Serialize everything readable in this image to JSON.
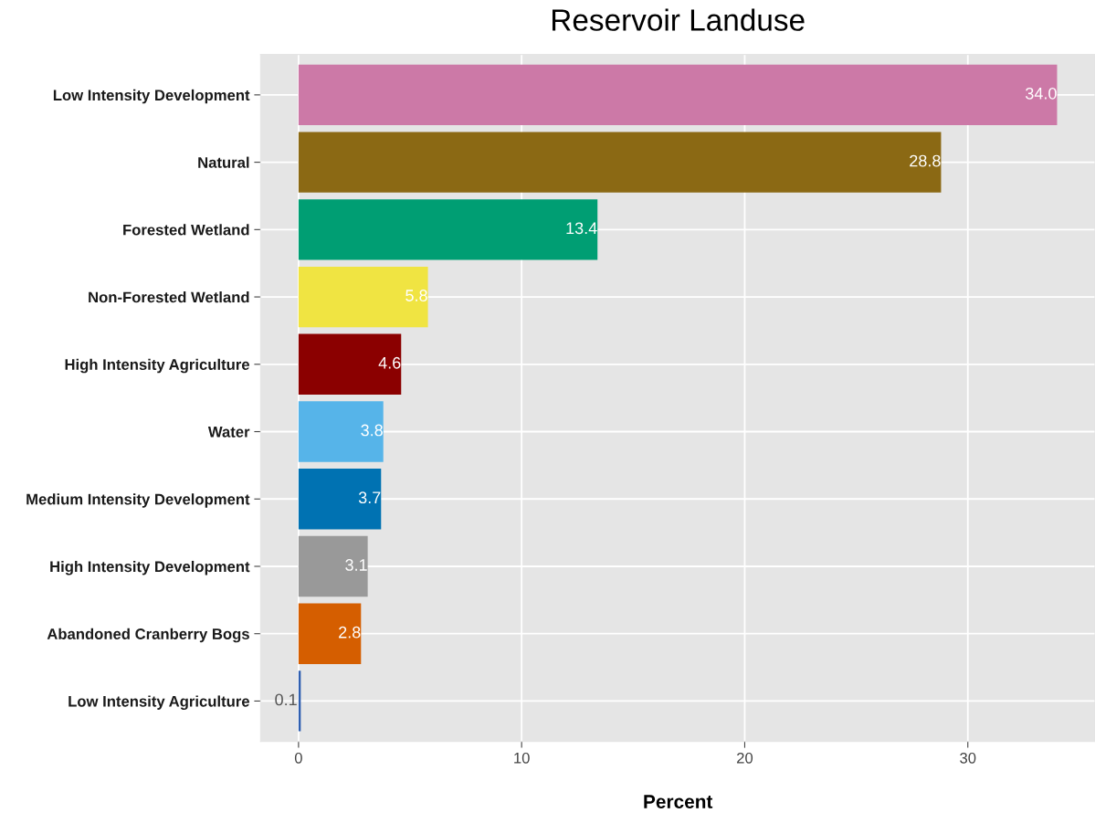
{
  "chart_data": {
    "type": "bar",
    "orientation": "horizontal",
    "title": "Reservoir Landuse",
    "xlabel": "Percent",
    "categories": [
      "Low Intensity Development",
      "Natural",
      "Forested Wetland",
      "Non-Forested Wetland",
      "High Intensity Agriculture",
      "Water",
      "Medium Intensity Development",
      "High Intensity Development",
      "Abandoned Cranberry Bogs",
      "Low Intensity Agriculture"
    ],
    "values": [
      34.0,
      28.8,
      13.4,
      5.8,
      4.6,
      3.8,
      3.7,
      3.1,
      2.8,
      0.1
    ],
    "value_labels": [
      "34.0",
      "28.8",
      "13.4",
      "5.8",
      "4.6",
      "3.8",
      "3.7",
      "3.1",
      "2.8",
      "0.1"
    ],
    "colors": [
      "#cc79a7",
      "#8b6914",
      "#009e73",
      "#f0e442",
      "#8b0000",
      "#56b4e9",
      "#0072b2",
      "#999999",
      "#d55e00",
      "#2f5fb0"
    ],
    "xlim": [
      -1.7,
      35.7
    ],
    "xticks": [
      0,
      10,
      20,
      30
    ],
    "grid": true
  }
}
